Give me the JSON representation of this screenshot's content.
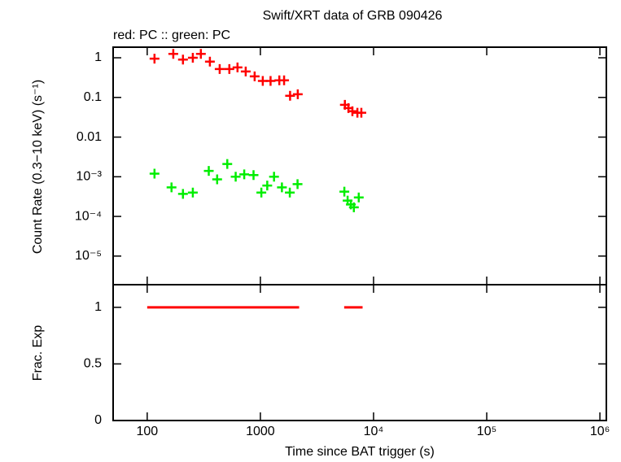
{
  "chart_data": [
    {
      "type": "scatter",
      "title": "Swift/XRT data of GRB 090426",
      "subtitle": "red: PC  :: green: PC",
      "y_label": "Count Rate (0.3−10 keV) (s⁻¹)",
      "xscale": "log",
      "yscale": "log",
      "xlim": [
        50,
        1140000
      ],
      "ylim": [
        1.9e-06,
        1.85
      ],
      "xticks": [
        100,
        1000,
        {
          "value": 10000,
          "label": "10⁴"
        },
        {
          "value": 100000,
          "label": "10⁵"
        },
        {
          "value": 1000000,
          "label": "10⁶"
        }
      ],
      "yticks": [
        1,
        0.1,
        0.01,
        {
          "value": 0.001,
          "label": "10⁻³"
        },
        {
          "value": 0.0001,
          "label": "10⁻⁴"
        },
        {
          "value": 1e-05,
          "label": "10⁻⁵"
        }
      ],
      "series": [
        {
          "color": "#ff0000",
          "x": [
            116,
            170,
            207,
            253,
            298,
            358,
            437,
            532,
            628,
            742,
            890,
            1050,
            1230,
            1470,
            1620,
            1830,
            2140,
            5580,
            6000,
            6500,
            7200,
            7800
          ],
          "values": [
            0.95,
            1.25,
            0.9,
            1.0,
            1.25,
            0.8,
            0.52,
            0.52,
            0.57,
            0.45,
            0.34,
            0.26,
            0.26,
            0.27,
            0.27,
            0.11,
            0.12,
            0.065,
            0.054,
            0.045,
            0.041,
            0.041
          ]
        },
        {
          "color": "#00ee00",
          "x": [
            116,
            164,
            207,
            253,
            350,
            415,
            510,
            605,
            720,
            870,
            1020,
            1150,
            1320,
            1550,
            1820,
            2130,
            5520,
            5900,
            6300,
            6700,
            7400
          ],
          "values": [
            0.0012,
            0.00054,
            0.00037,
            0.0004,
            0.0014,
            0.00086,
            0.0021,
            0.001,
            0.00115,
            0.0011,
            0.0004,
            0.0006,
            0.001,
            0.00054,
            0.0004,
            0.00065,
            0.00042,
            0.00025,
            0.0002,
            0.00017,
            0.0003
          ]
        }
      ]
    },
    {
      "type": "segments",
      "x_label": "Time since BAT trigger (s)",
      "y_label": "Frac. Exp",
      "xscale": "log",
      "xlim": [
        50,
        1140000
      ],
      "ylim": [
        0,
        1.2
      ],
      "xticks": [
        100,
        1000,
        {
          "value": 10000,
          "label": "10⁴"
        },
        {
          "value": 100000,
          "label": "10⁵"
        },
        {
          "value": 1000000,
          "label": "10⁶"
        }
      ],
      "yticks": [
        0,
        0.5,
        1
      ],
      "series": [
        {
          "color": "#ff0000",
          "x": [
            100,
            2200
          ],
          "values": [
            1,
            1
          ]
        },
        {
          "color": "#ff0000",
          "x": [
            5500,
            8000
          ],
          "values": [
            1,
            1
          ]
        }
      ]
    }
  ]
}
